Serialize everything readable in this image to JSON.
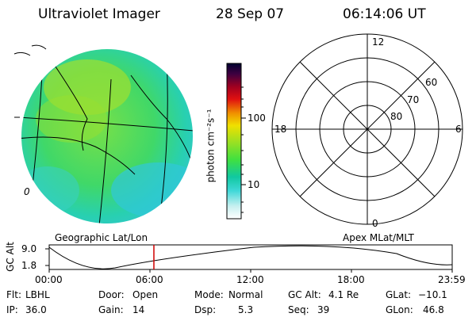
{
  "header": {
    "instrument": "Ultraviolet Imager",
    "date": "28 Sep 07",
    "time": "06:14:06 UT"
  },
  "colorbar": {
    "unit_label": "photon cm⁻²s⁻¹",
    "ticks": [
      {
        "label": "100",
        "value": 100
      },
      {
        "label": "10",
        "value": 10
      }
    ],
    "colors": [
      "#ffffff",
      "#c8f0f0",
      "#40d8d8",
      "#10c8a0",
      "#40e040",
      "#a0e020",
      "#f0e000",
      "#f09000",
      "#e01010",
      "#a00020",
      "#400040",
      "#000030"
    ]
  },
  "globe": {
    "label": "Geographic Lat/Lon",
    "outer_tick": "0"
  },
  "polar": {
    "label": "Apex MLat/MLT",
    "mlt_labels": {
      "top": "12",
      "left": "18",
      "right": "6",
      "bottom": "0"
    },
    "lat_labels": [
      "60",
      "70",
      "80"
    ]
  },
  "timeline": {
    "axis_label": "GC Alt",
    "y_ticks": [
      "9.0",
      "1.8"
    ],
    "x_ticks": [
      "00:00",
      "06:00",
      "12:00",
      "18:00",
      "23:59"
    ],
    "current_time_hours": 6.235,
    "marker_color": "#d00000"
  },
  "footer": {
    "row1": [
      {
        "key": "Flt:",
        "value": "LBHL"
      },
      {
        "key": "Door:",
        "value": "Open"
      },
      {
        "key": "Mode:",
        "value": "Normal"
      },
      {
        "key": "GC Alt:",
        "value": "4.1 Re"
      },
      {
        "key": "GLat:",
        "value": "−10.1"
      }
    ],
    "row2": [
      {
        "key": "IP:",
        "value": "36.0"
      },
      {
        "key": "Gain:",
        "value": "14"
      },
      {
        "key": "Dsp:",
        "value": "5.3"
      },
      {
        "key": "Seq:",
        "value": "39"
      },
      {
        "key": "GLon:",
        "value": "46.8"
      }
    ]
  }
}
